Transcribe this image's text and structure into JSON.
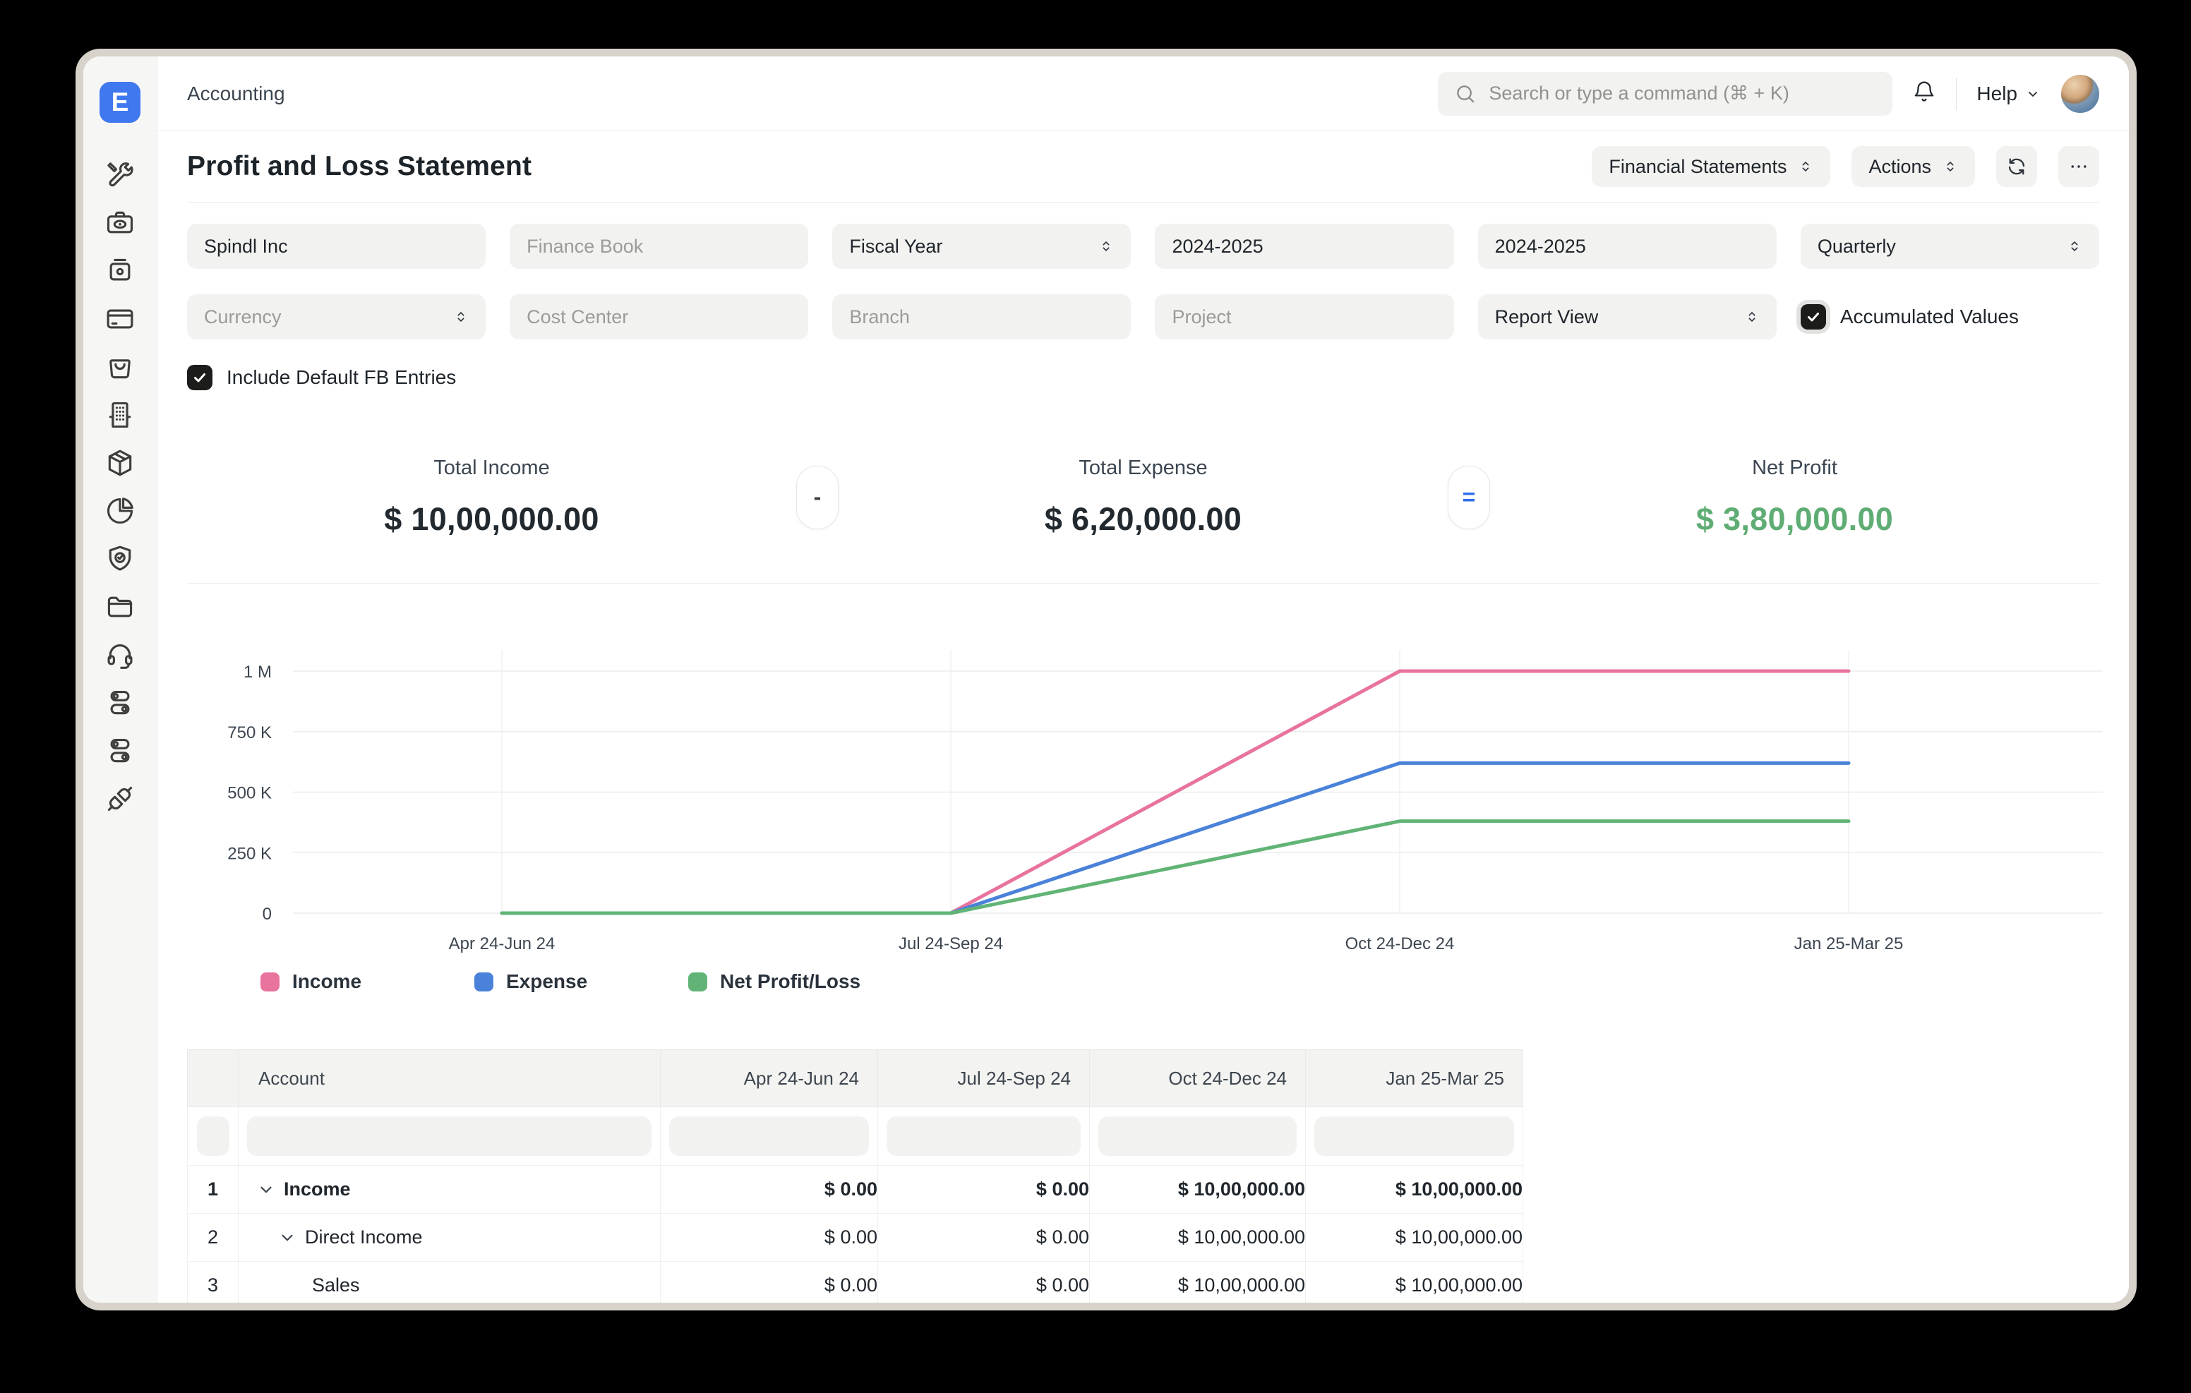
{
  "window": {
    "logo_letter": "E"
  },
  "topbar": {
    "breadcrumb": "Accounting",
    "search_placeholder": "Search or type a command (⌘ + K)",
    "help_label": "Help"
  },
  "sidebar": {
    "items": [
      {
        "icon": "tools"
      },
      {
        "icon": "money"
      },
      {
        "icon": "cash-register"
      },
      {
        "icon": "credit-card"
      },
      {
        "icon": "shopping-bag"
      },
      {
        "icon": "building"
      },
      {
        "icon": "package"
      },
      {
        "icon": "pie-chart"
      },
      {
        "icon": "shield-check"
      },
      {
        "icon": "folder"
      },
      {
        "icon": "headset"
      },
      {
        "icon": "toggles"
      },
      {
        "icon": "toggles-2"
      },
      {
        "icon": "plug"
      }
    ]
  },
  "page": {
    "title": "Profit and Loss Statement"
  },
  "toolbar": {
    "report_group_label": "Financial Statements",
    "actions_label": "Actions"
  },
  "filters": {
    "row1": [
      {
        "name": "company",
        "value": "Spindl Inc",
        "kind": "input",
        "state": "filled"
      },
      {
        "name": "finance-book",
        "value": "Finance Book",
        "kind": "input",
        "state": "placeholder"
      },
      {
        "name": "period-basis",
        "value": "Fiscal Year",
        "kind": "select",
        "state": "filled"
      },
      {
        "name": "from-fiscal-year",
        "value": "2024-2025",
        "kind": "input",
        "state": "filled"
      },
      {
        "name": "to-fiscal-year",
        "value": "2024-2025",
        "kind": "input",
        "state": "filled"
      },
      {
        "name": "periodicity",
        "value": "Quarterly",
        "kind": "select",
        "state": "filled"
      }
    ],
    "row2": [
      {
        "name": "currency",
        "value": "Currency",
        "kind": "select",
        "state": "placeholder"
      },
      {
        "name": "cost-center",
        "value": "Cost Center",
        "kind": "input",
        "state": "placeholder"
      },
      {
        "name": "branch",
        "value": "Branch",
        "kind": "input",
        "state": "placeholder"
      },
      {
        "name": "project",
        "value": "Project",
        "kind": "input",
        "state": "placeholder"
      },
      {
        "name": "report-view",
        "value": "Report View",
        "kind": "select",
        "state": "filled"
      }
    ],
    "accumulated_values_label": "Accumulated Values",
    "accumulated_values_checked": true,
    "include_default_fb_label": "Include Default FB Entries",
    "include_default_fb_checked": true
  },
  "summary": {
    "items": [
      {
        "label": "Total Income",
        "value": "$ 10,00,000.00",
        "color": "dark"
      },
      {
        "label": "Total Expense",
        "value": "$ 6,20,000.00",
        "color": "dark"
      },
      {
        "label": "Net Profit",
        "value": "$ 3,80,000.00",
        "color": "green"
      }
    ],
    "operators": [
      "-",
      "="
    ]
  },
  "chart_data": {
    "type": "line",
    "categories": [
      "Apr 24-Jun 24",
      "Jul 24-Sep 24",
      "Oct 24-Dec 24",
      "Jan 25-Mar 25"
    ],
    "series": [
      {
        "name": "Income",
        "color": "#e8739e",
        "values": [
          0,
          0,
          1000000,
          1000000
        ]
      },
      {
        "name": "Expense",
        "color": "#4a82d9",
        "values": [
          0,
          0,
          620000,
          620000
        ]
      },
      {
        "name": "Net Profit/Loss",
        "color": "#61b476",
        "values": [
          0,
          0,
          380000,
          380000
        ]
      }
    ],
    "y_ticks": [
      "1 M",
      "750 K",
      "500 K",
      "250 K",
      "0"
    ],
    "y_tick_values": [
      1000000,
      750000,
      500000,
      250000,
      0
    ],
    "ylim": [
      0,
      1000000
    ],
    "grid": true,
    "legend_position": "bottom"
  },
  "report_table": {
    "columns": [
      "Account",
      "Apr 24-Jun 24",
      "Jul 24-Sep 24",
      "Oct 24-Dec 24",
      "Jan 25-Mar 25"
    ],
    "rows": [
      {
        "num": "1",
        "indent": 0,
        "expandable": true,
        "bold": true,
        "account": "Income",
        "values": [
          "$ 0.00",
          "$ 0.00",
          "$ 10,00,000.00",
          "$ 10,00,000.00"
        ]
      },
      {
        "num": "2",
        "indent": 1,
        "expandable": true,
        "bold": false,
        "account": "Direct Income",
        "values": [
          "$ 0.00",
          "$ 0.00",
          "$ 10,00,000.00",
          "$ 10,00,000.00"
        ]
      },
      {
        "num": "3",
        "indent": 2,
        "expandable": false,
        "bold": false,
        "account": "Sales",
        "values": [
          "$ 0.00",
          "$ 0.00",
          "$ 10,00,000.00",
          "$ 10,00,000.00"
        ]
      }
    ]
  }
}
